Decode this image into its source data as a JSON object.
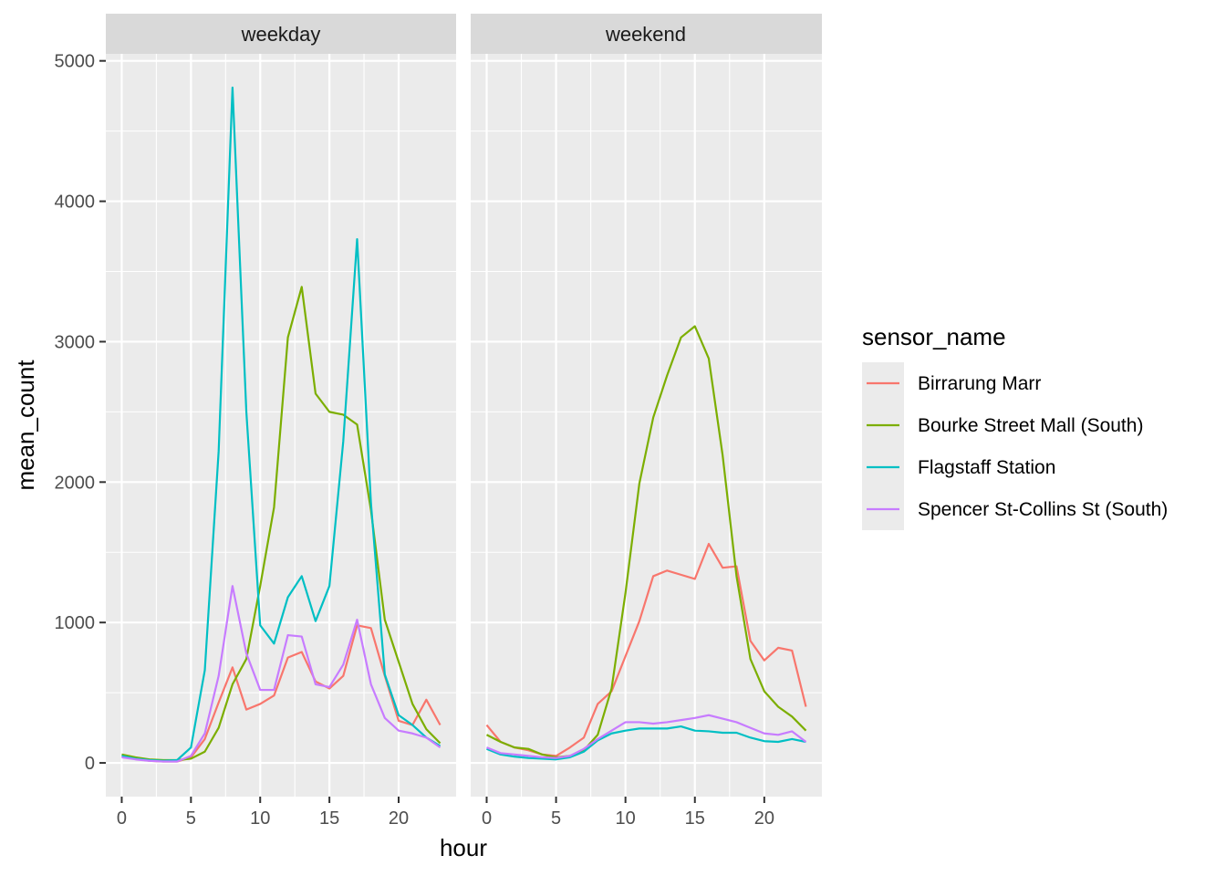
{
  "chart_data": {
    "type": "line",
    "xlabel": "hour",
    "ylabel": "mean_count",
    "xlim": [
      -1.15,
      24.15
    ],
    "ylim": [
      -240,
      5050
    ],
    "x_ticks": [
      0,
      5,
      10,
      15,
      20
    ],
    "y_ticks": [
      0,
      1000,
      2000,
      3000,
      4000,
      5000
    ],
    "grid": true,
    "legend": {
      "title": "sensor_name",
      "position": "right",
      "entries": [
        "Birrarung Marr",
        "Bourke Street Mall (South)",
        "Flagstaff Station",
        "Spencer St-Collins St (South)"
      ]
    },
    "colors": {
      "Birrarung Marr": "#F8766D",
      "Bourke Street Mall (South)": "#7CAE00",
      "Flagstaff Station": "#00BFC4",
      "Spencer St-Collins St (South)": "#C77CFF"
    },
    "x": [
      0,
      1,
      2,
      3,
      4,
      5,
      6,
      7,
      8,
      9,
      10,
      11,
      12,
      13,
      14,
      15,
      16,
      17,
      18,
      19,
      20,
      21,
      22,
      23
    ],
    "panels": [
      {
        "label": "weekday",
        "series": [
          {
            "name": "Birrarung Marr",
            "values": [
              50,
              30,
              15,
              10,
              10,
              40,
              170,
              430,
              680,
              380,
              420,
              480,
              750,
              790,
              580,
              530,
              620,
              980,
              960,
              620,
              300,
              270,
              450,
              270
            ]
          },
          {
            "name": "Bourke Street Mall (South)",
            "values": [
              60,
              40,
              25,
              20,
              20,
              30,
              80,
              250,
              560,
              740,
              1260,
              1820,
              3030,
              3390,
              2630,
              2500,
              2480,
              2410,
              1800,
              1020,
              720,
              420,
              240,
              140
            ]
          },
          {
            "name": "Flagstaff Station",
            "values": [
              50,
              30,
              20,
              15,
              20,
              110,
              660,
              2220,
              4810,
              2500,
              980,
              850,
              1180,
              1330,
              1010,
              1260,
              2290,
              3730,
              1850,
              630,
              340,
              270,
              180,
              120
            ]
          },
          {
            "name": "Spencer St-Collins St (South)",
            "values": [
              40,
              25,
              15,
              10,
              10,
              50,
              210,
              620,
              1260,
              780,
              520,
              520,
              910,
              900,
              560,
              540,
              700,
              1020,
              560,
              320,
              230,
              210,
              180,
              110
            ]
          }
        ]
      },
      {
        "label": "weekend",
        "series": [
          {
            "name": "Birrarung Marr",
            "values": [
              270,
              150,
              110,
              90,
              60,
              50,
              110,
              180,
              420,
              510,
              760,
              1010,
              1330,
              1370,
              1340,
              1310,
              1560,
              1390,
              1400,
              870,
              730,
              820,
              800,
              400
            ]
          },
          {
            "name": "Bourke Street Mall (South)",
            "values": [
              200,
              150,
              110,
              100,
              60,
              40,
              50,
              90,
              200,
              530,
              1210,
              1990,
              2460,
              2760,
              3030,
              3110,
              2880,
              2190,
              1330,
              740,
              510,
              400,
              330,
              230
            ]
          },
          {
            "name": "Flagstaff Station",
            "values": [
              100,
              60,
              45,
              35,
              30,
              25,
              40,
              80,
              160,
              210,
              230,
              245,
              245,
              245,
              260,
              230,
              225,
              215,
              215,
              180,
              155,
              150,
              170,
              150
            ]
          },
          {
            "name": "Spencer St-Collins St (South)",
            "values": [
              110,
              70,
              60,
              50,
              40,
              35,
              50,
              100,
              170,
              230,
              290,
              290,
              280,
              290,
              305,
              320,
              340,
              315,
              290,
              250,
              210,
              200,
              225,
              150
            ]
          }
        ]
      }
    ]
  }
}
